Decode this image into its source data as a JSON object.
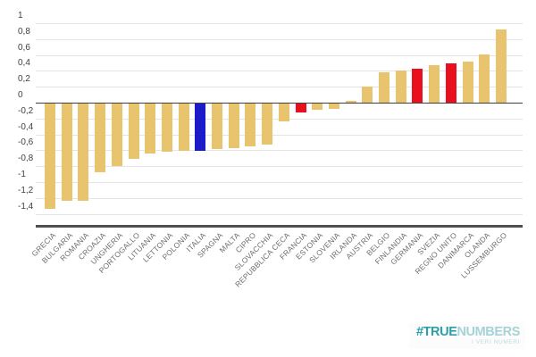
{
  "chart_data": {
    "type": "bar",
    "title": "",
    "xlabel": "",
    "ylabel": "",
    "grid": true,
    "legend_position": "none",
    "ylim": [
      -1.4,
      1
    ],
    "number_locale": "it (comma decimals)",
    "yticks": [
      {
        "value": 1,
        "label": "1"
      },
      {
        "value": 0.8,
        "label": "0,8"
      },
      {
        "value": 0.6,
        "label": "0,6"
      },
      {
        "value": 0.4,
        "label": "0,4"
      },
      {
        "value": 0.2,
        "label": "0,2"
      },
      {
        "value": 0,
        "label": "0"
      },
      {
        "value": -0.2,
        "label": "-0,2"
      },
      {
        "value": -0.4,
        "label": "-0,4"
      },
      {
        "value": -0.6,
        "label": "-0,6"
      },
      {
        "value": -0.8,
        "label": "-0,8"
      },
      {
        "value": -1,
        "label": "-1"
      },
      {
        "value": -1.2,
        "label": "-1,2"
      },
      {
        "value": -1.4,
        "label": "-1,4"
      }
    ],
    "categories": [
      "GRECIA",
      "BULGARIA",
      "ROMANIA",
      "CROAZIA",
      "UNGHERIA",
      "PORTOGALLO",
      "LITUANIA",
      "LETTONIA",
      "POLONIA",
      "ITALIA",
      "SPAGNA",
      "MALTA",
      "CIPRO",
      "SLOVACCHIA",
      "REPUBBLICA CECA",
      "FRANCIA",
      "ESTONIA",
      "SLOVENIA",
      "IRLANDA",
      "AUSTRIA",
      "BELGIO",
      "FINLANDIA",
      "GERMANIA",
      "SVEZIA",
      "REGNO UNITO",
      "DANIMARCA",
      "OLANDA",
      "LUSSEMBURGO"
    ],
    "values": [
      -1.33,
      -1.23,
      -1.22,
      -0.87,
      -0.79,
      -0.7,
      -0.63,
      -0.61,
      -0.6,
      -0.59,
      -0.57,
      -0.56,
      -0.54,
      -0.52,
      -0.23,
      -0.11,
      -0.08,
      -0.07,
      0.02,
      0.2,
      0.38,
      0.41,
      0.43,
      0.47,
      0.49,
      0.52,
      0.61,
      0.92
    ],
    "colors": {
      "default": "#E8C46E",
      "blue": "#1B1BC9",
      "red": "#E8101E"
    },
    "highlights": {
      "ITALIA": "blue",
      "FRANCIA": "red",
      "GERMANIA": "red",
      "REGNO UNITO": "red"
    }
  },
  "branding": {
    "logo_hash_bold": "#TRUE",
    "logo_light": "NUMBERS",
    "tagline": "I VERI NUMERI",
    "logo_color_dark": "#2E9EA9",
    "logo_color_light": "#A6D3D8",
    "tagline_color": "#B9DCE0"
  }
}
